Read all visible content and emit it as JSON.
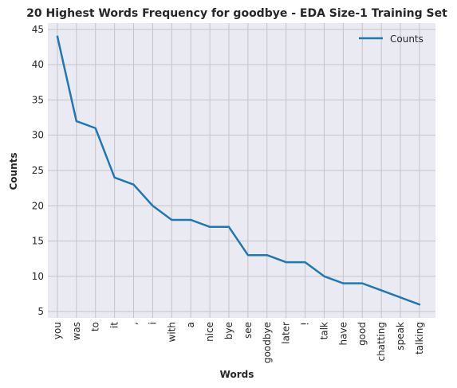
{
  "chart_data": {
    "type": "line",
    "title": "20 Highest Words Frequency for goodbye - EDA Size-1 Training Set",
    "xlabel": "Words",
    "ylabel": "Counts",
    "categories": [
      "you",
      "was",
      "to",
      "it",
      ",",
      "i",
      "with",
      "a",
      "nice",
      "bye",
      "see",
      "goodbye",
      "later",
      "!",
      "talk",
      "have",
      "good",
      "chatting",
      "speak",
      "talking"
    ],
    "series": [
      {
        "name": "Counts",
        "values": [
          44,
          32,
          31,
          24,
          23,
          20,
          18,
          18,
          17,
          17,
          13,
          13,
          12,
          12,
          10,
          9,
          9,
          8,
          7,
          6
        ]
      }
    ],
    "ylim": [
      4.1,
      45.9
    ],
    "yticks": [
      5,
      10,
      15,
      20,
      25,
      30,
      35,
      40,
      45
    ],
    "grid": true,
    "legend_position": "top-right",
    "colors": {
      "line": "#1f77b4",
      "plot_bg": "#eaeaf2",
      "grid": "#c4c4c8"
    }
  }
}
